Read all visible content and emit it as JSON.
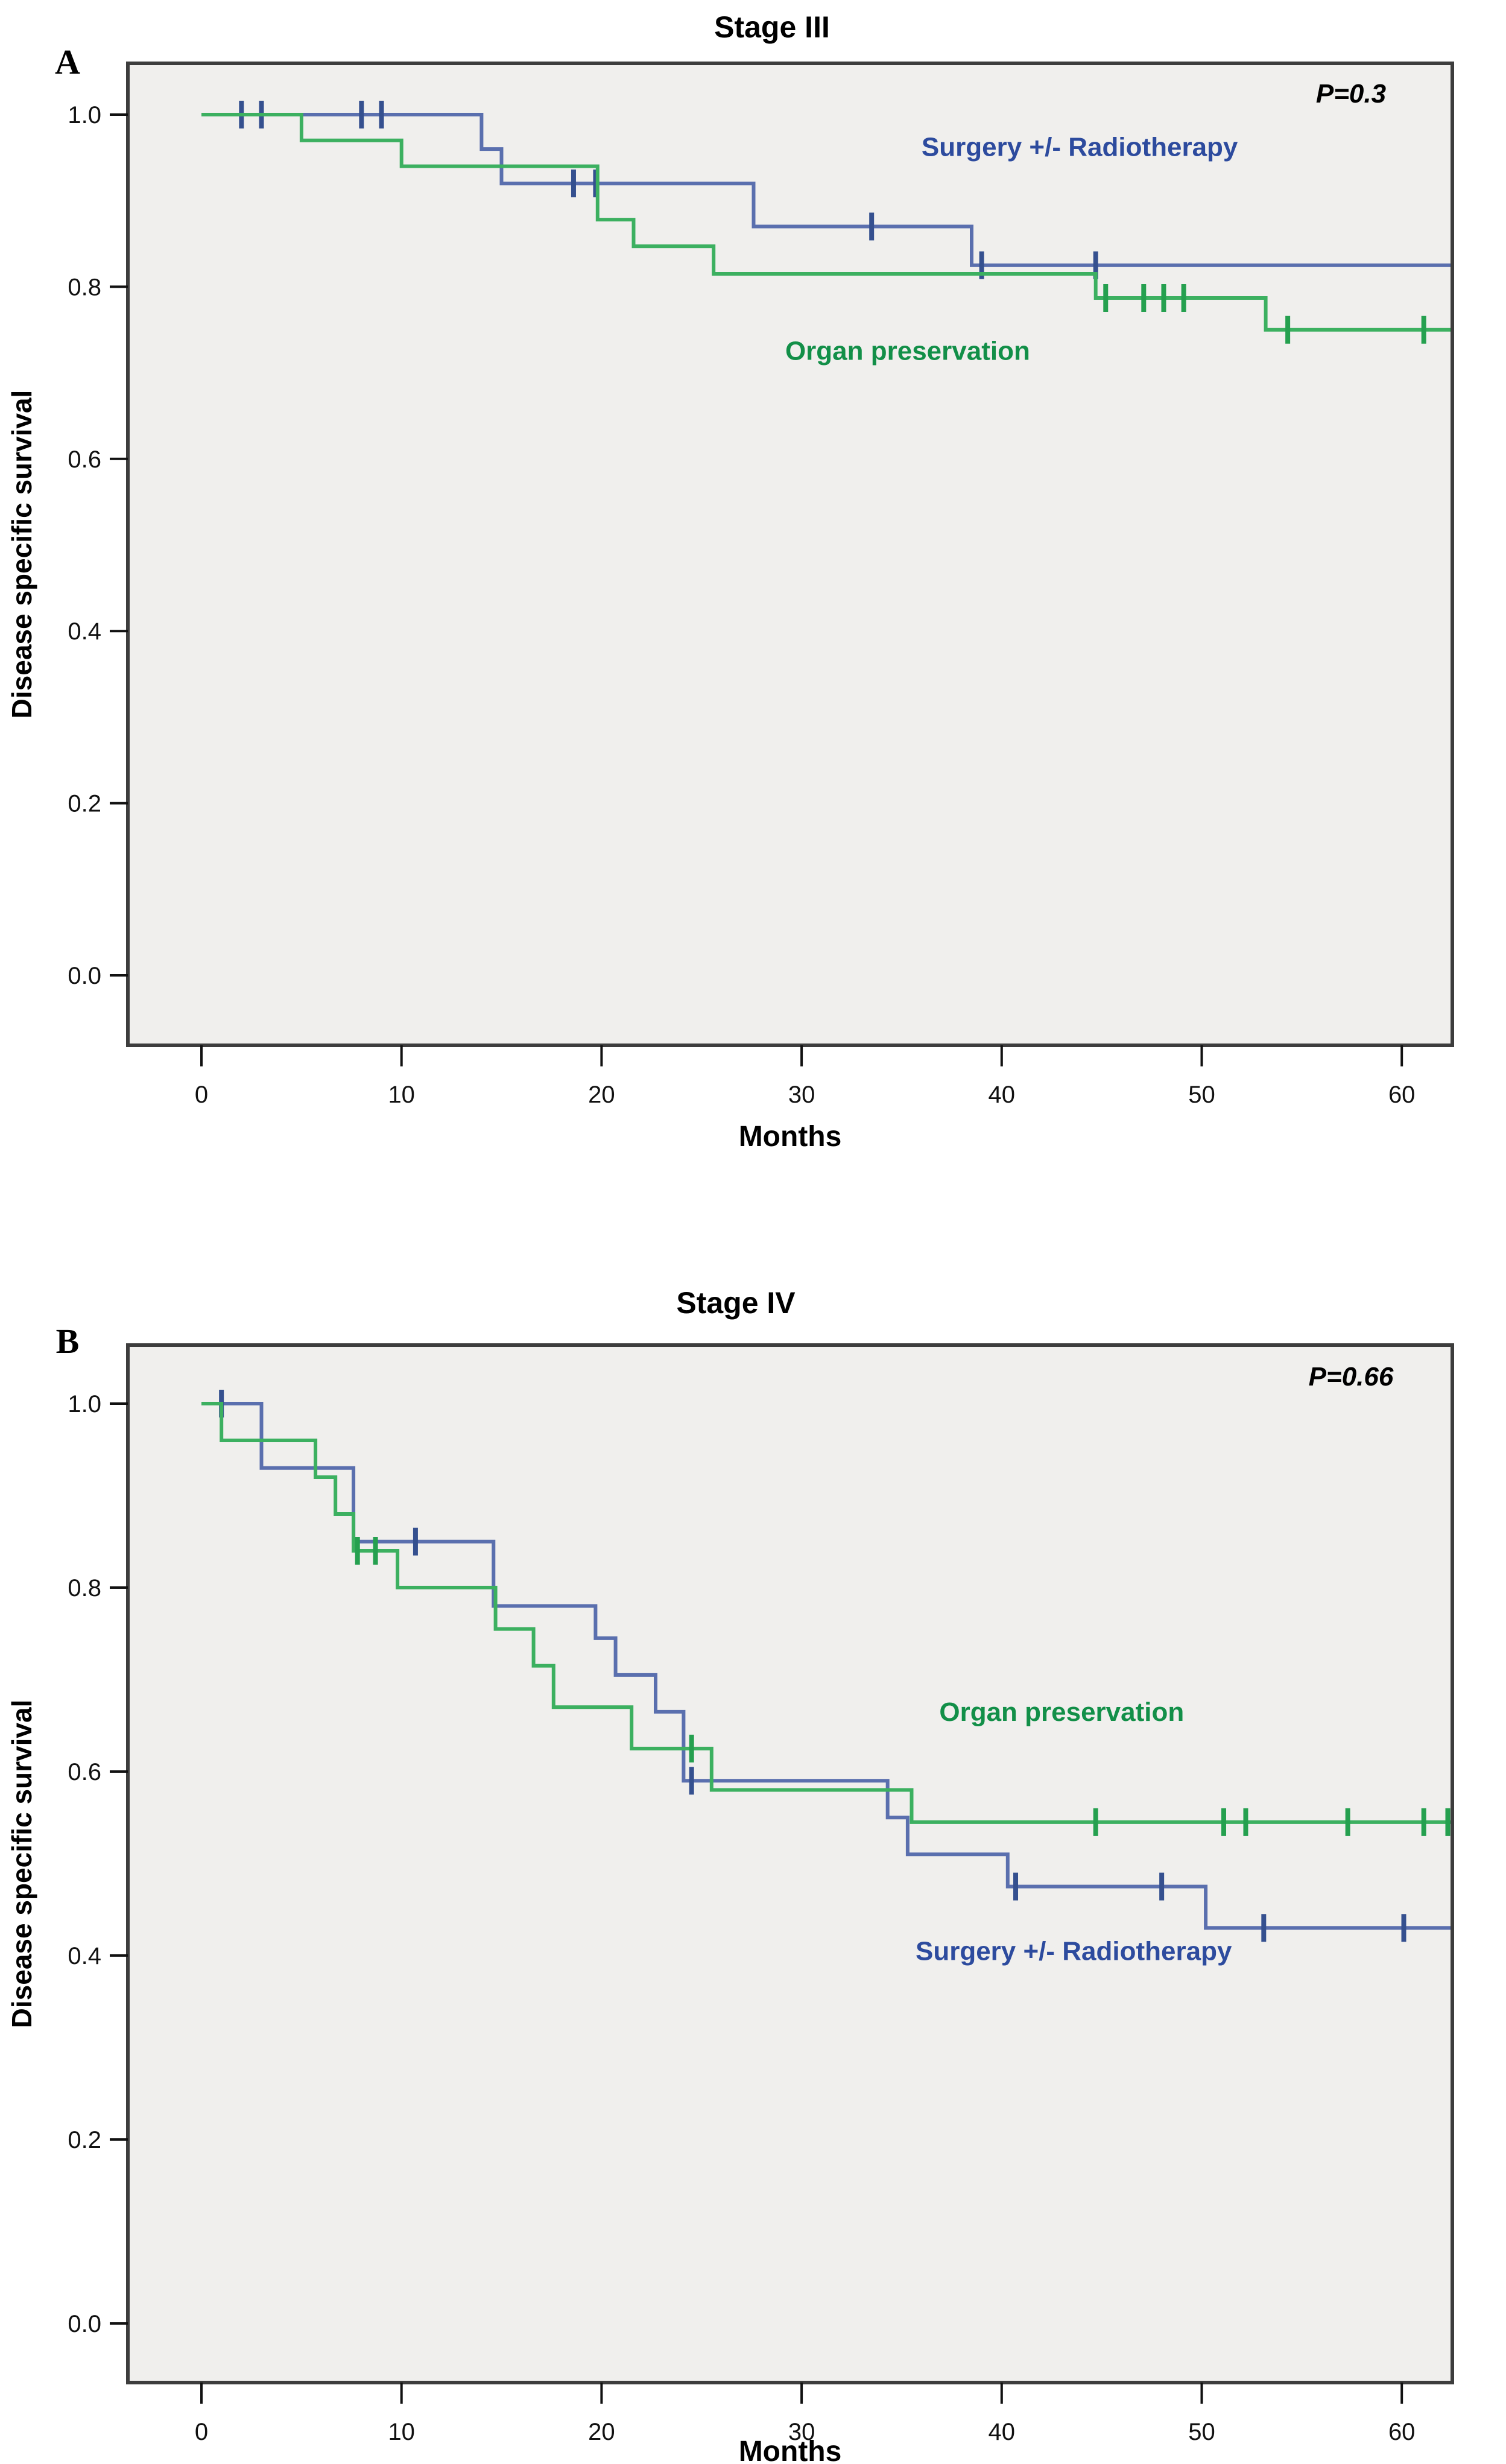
{
  "figure": {
    "background": "#ffffff",
    "plot_background": "#f0efed",
    "plot_border_color": "#3d3d3d",
    "tick_text_color": "#111111",
    "series_colors": {
      "surgery_line": "#5a6fae",
      "surgery_censor": "#35508f",
      "surgery_label": "#2d4b9e",
      "organ_line": "#3cb060",
      "organ_censor": "#25a04f",
      "organ_label": "#128f48"
    }
  },
  "chart_data": [
    {
      "type": "line",
      "subtype": "kaplan-meier-step",
      "panel_letter": "A",
      "title": "Stage III",
      "p_value_label": "P=0.3",
      "xlabel": "Months",
      "ylabel": "Disease specific survival",
      "xlim": [
        0,
        62.5
      ],
      "ylim": [
        0.0,
        1.0
      ],
      "grid": false,
      "legend_position": "inside-plot",
      "x_ticks": [
        0,
        10,
        20,
        30,
        40,
        50,
        60
      ],
      "y_ticks": [
        {
          "v": 1.0,
          "label": "1.0"
        },
        {
          "v": 0.8,
          "label": "0.8"
        },
        {
          "v": 0.6,
          "label": "0.6"
        },
        {
          "v": 0.4,
          "label": "0.4"
        },
        {
          "v": 0.2,
          "label": "0.2"
        },
        {
          "v": 0.0,
          "label": "0.0"
        }
      ],
      "series": [
        {
          "name": "Surgery +/- Radiotherapy",
          "color": "#5a6fae",
          "censor_color": "#35508f",
          "label_color": "#2d4b9e",
          "label_pos": {
            "x": 43.9,
            "y": 0.952
          },
          "steps": [
            [
              0,
              1.0
            ],
            [
              14,
              1.0
            ],
            [
              14,
              0.96
            ],
            [
              15,
              0.96
            ],
            [
              15,
              0.92
            ],
            [
              27.6,
              0.92
            ],
            [
              27.6,
              0.87
            ],
            [
              38.5,
              0.87
            ],
            [
              38.5,
              0.825
            ],
            [
              62.5,
              0.825
            ]
          ],
          "censors": [
            [
              2,
              1.0
            ],
            [
              3,
              1.0
            ],
            [
              8,
              1.0
            ],
            [
              9,
              1.0
            ],
            [
              18.6,
              0.92
            ],
            [
              19.7,
              0.92
            ],
            [
              33.5,
              0.87
            ],
            [
              39,
              0.825
            ],
            [
              44.7,
              0.825
            ]
          ]
        },
        {
          "name": "Organ preservation",
          "color": "#3cb060",
          "censor_color": "#25a04f",
          "label_color": "#128f48",
          "label_pos": {
            "x": 35.3,
            "y": 0.715
          },
          "steps": [
            [
              0,
              1.0
            ],
            [
              5,
              1.0
            ],
            [
              5,
              0.97
            ],
            [
              10,
              0.97
            ],
            [
              10,
              0.94
            ],
            [
              19.8,
              0.94
            ],
            [
              19.8,
              0.878
            ],
            [
              21.6,
              0.878
            ],
            [
              21.6,
              0.847
            ],
            [
              25.6,
              0.847
            ],
            [
              25.6,
              0.815
            ],
            [
              44.7,
              0.815
            ],
            [
              44.7,
              0.787
            ],
            [
              53.2,
              0.787
            ],
            [
              53.2,
              0.75
            ],
            [
              62.5,
              0.75
            ]
          ],
          "censors": [
            [
              45.2,
              0.787
            ],
            [
              47.1,
              0.787
            ],
            [
              48.1,
              0.787
            ],
            [
              49.1,
              0.787
            ],
            [
              54.3,
              0.75
            ],
            [
              61.1,
              0.75
            ]
          ]
        }
      ]
    },
    {
      "type": "line",
      "subtype": "kaplan-meier-step",
      "panel_letter": "B",
      "title": "Stage IV",
      "p_value_label": "P=0.66",
      "xlabel": "Months",
      "ylabel": "Disease specific survival",
      "xlim": [
        0,
        62.5
      ],
      "ylim": [
        0.0,
        1.0
      ],
      "grid": false,
      "legend_position": "inside-plot",
      "x_ticks": [
        0,
        10,
        20,
        30,
        40,
        50,
        60
      ],
      "y_ticks": [
        {
          "v": 1.0,
          "label": "1.0"
        },
        {
          "v": 0.8,
          "label": "0.8"
        },
        {
          "v": 0.6,
          "label": "0.6"
        },
        {
          "v": 0.4,
          "label": "0.4"
        },
        {
          "v": 0.2,
          "label": "0.2"
        },
        {
          "v": 0.0,
          "label": "0.0"
        }
      ],
      "series": [
        {
          "name": "Surgery +/- Radiotherapy",
          "color": "#5a6fae",
          "censor_color": "#35508f",
          "label_color": "#2d4b9e",
          "label_pos": {
            "x": 43.6,
            "y": 0.395
          },
          "steps": [
            [
              0,
              1.0
            ],
            [
              3,
              1.0
            ],
            [
              3,
              0.93
            ],
            [
              7.6,
              0.93
            ],
            [
              7.6,
              0.85
            ],
            [
              14.6,
              0.85
            ],
            [
              14.6,
              0.78
            ],
            [
              19.7,
              0.78
            ],
            [
              19.7,
              0.745
            ],
            [
              20.7,
              0.745
            ],
            [
              20.7,
              0.705
            ],
            [
              22.7,
              0.705
            ],
            [
              22.7,
              0.665
            ],
            [
              24.1,
              0.665
            ],
            [
              24.1,
              0.59
            ],
            [
              34.3,
              0.59
            ],
            [
              34.3,
              0.55
            ],
            [
              35.3,
              0.55
            ],
            [
              35.3,
              0.51
            ],
            [
              40.3,
              0.51
            ],
            [
              40.3,
              0.475
            ],
            [
              50.2,
              0.475
            ],
            [
              50.2,
              0.43
            ],
            [
              62.5,
              0.43
            ]
          ],
          "censors": [
            [
              1,
              1.0
            ],
            [
              10.7,
              0.85
            ],
            [
              24.5,
              0.59
            ],
            [
              40.7,
              0.475
            ],
            [
              48,
              0.475
            ],
            [
              53.1,
              0.43
            ],
            [
              60.1,
              0.43
            ]
          ]
        },
        {
          "name": "Organ preservation",
          "color": "#3cb060",
          "censor_color": "#25a04f",
          "label_color": "#128f48",
          "label_pos": {
            "x": 43.0,
            "y": 0.655
          },
          "steps": [
            [
              0,
              1.0
            ],
            [
              1,
              1.0
            ],
            [
              1,
              0.96
            ],
            [
              5.7,
              0.96
            ],
            [
              5.7,
              0.92
            ],
            [
              6.7,
              0.92
            ],
            [
              6.7,
              0.88
            ],
            [
              7.6,
              0.88
            ],
            [
              7.6,
              0.84
            ],
            [
              9.8,
              0.84
            ],
            [
              9.8,
              0.8
            ],
            [
              14.7,
              0.8
            ],
            [
              14.7,
              0.755
            ],
            [
              16.6,
              0.755
            ],
            [
              16.6,
              0.715
            ],
            [
              17.6,
              0.715
            ],
            [
              17.6,
              0.67
            ],
            [
              21.5,
              0.67
            ],
            [
              21.5,
              0.625
            ],
            [
              25.5,
              0.625
            ],
            [
              25.5,
              0.58
            ],
            [
              35.5,
              0.58
            ],
            [
              35.5,
              0.545
            ],
            [
              62.5,
              0.545
            ]
          ],
          "censors": [
            [
              7.8,
              0.84
            ],
            [
              8.7,
              0.84
            ],
            [
              24.5,
              0.625
            ],
            [
              44.7,
              0.545
            ],
            [
              51.1,
              0.545
            ],
            [
              52.2,
              0.545
            ],
            [
              57.3,
              0.545
            ],
            [
              61.1,
              0.545
            ],
            [
              62.3,
              0.545
            ]
          ]
        }
      ]
    }
  ]
}
